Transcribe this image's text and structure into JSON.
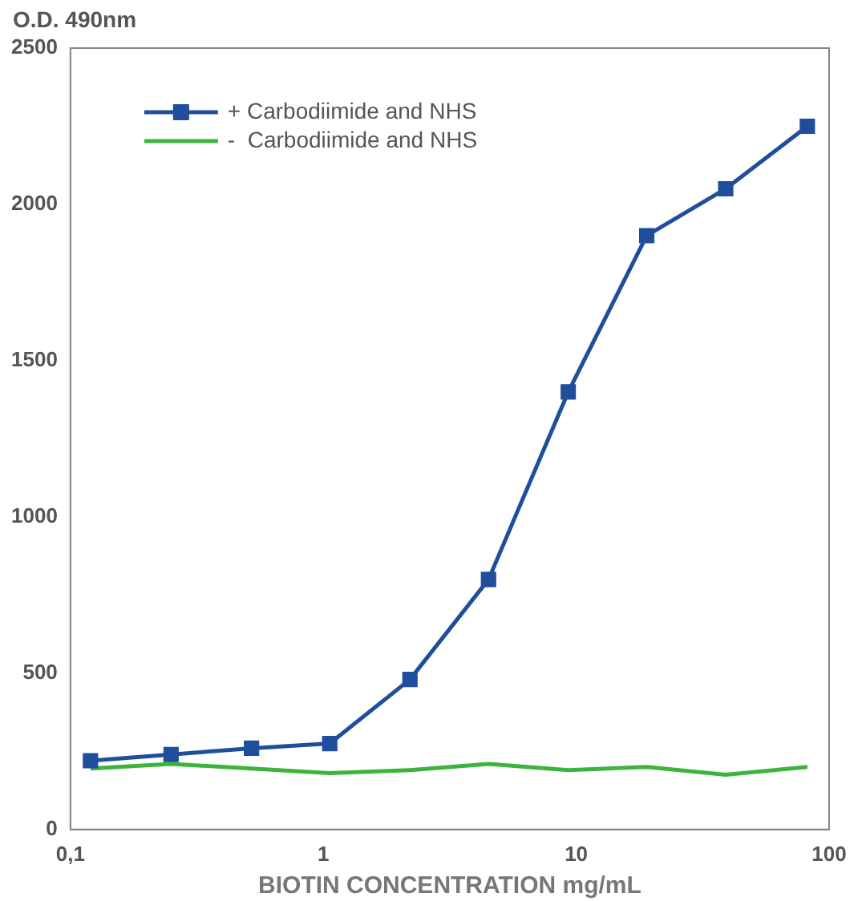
{
  "chart_data": {
    "type": "line",
    "xlabel": "BIOTIN CONCENTRATION mg/mL",
    "ylabel": "O.D. 490nm",
    "log": "x",
    "x": [
      0.12,
      0.25,
      0.52,
      1.06,
      2.2,
      4.5,
      9.3,
      19,
      39,
      82
    ],
    "xlim": [
      0.1,
      100
    ],
    "xticks": [
      {
        "value": 0.1,
        "label": "0,1"
      },
      1,
      10,
      100
    ],
    "ylim": [
      0,
      2500
    ],
    "yticks": [
      0,
      500,
      1000,
      1500,
      2000,
      2500
    ],
    "series": [
      {
        "name": "+ Carbodiimide and NHS",
        "color": "#1f4e9c",
        "marker": "square",
        "values": [
          220,
          240,
          260,
          275,
          480,
          800,
          1400,
          1900,
          2050,
          2250
        ]
      },
      {
        "name": "-  Carbodiimide and NHS",
        "color": "#3cb43c",
        "marker": "none",
        "values": [
          195,
          210,
          195,
          180,
          190,
          210,
          190,
          200,
          175,
          200
        ]
      }
    ],
    "grid": false,
    "legend": "top left"
  }
}
